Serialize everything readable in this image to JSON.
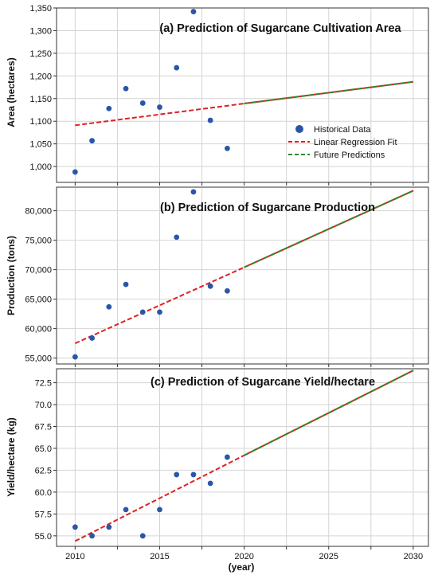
{
  "chart_data": [
    {
      "type": "scatter",
      "title": "(a) Prediction of Sugarcane Cultivation Area",
      "ylabel": "Area (hectares)",
      "xlim": [
        2008.9,
        2030.9
      ],
      "ylim": [
        965,
        1350
      ],
      "yticks": [
        1000,
        1050,
        1100,
        1150,
        1200,
        1250,
        1300,
        1350
      ],
      "ytick_labels": [
        "1,000",
        "1,050",
        "1,100",
        "1,150",
        "1,200",
        "1,250",
        "1,300",
        "1,350"
      ],
      "historical": {
        "x": [
          2010,
          2011,
          2012,
          2013,
          2014,
          2015,
          2016,
          2017,
          2018,
          2019
        ],
        "y": [
          988,
          1057,
          1128,
          1172,
          1140,
          1131,
          1218,
          1342,
          1102,
          1040
        ]
      },
      "fit": {
        "x": [
          2010,
          2020
        ],
        "y": [
          1091,
          1139
        ]
      },
      "prediction": {
        "x": [
          2020,
          2030
        ],
        "y": [
          1139,
          1187
        ]
      },
      "legend": {
        "position": "right",
        "entries": [
          "Historical Data",
          "Linear Regression Fit",
          "Future Predictions"
        ]
      }
    },
    {
      "type": "scatter",
      "title": "(b) Prediction of Sugarcane Production",
      "ylabel": "Production (tons)",
      "xlim": [
        2008.9,
        2030.9
      ],
      "ylim": [
        54000,
        84000
      ],
      "yticks": [
        55000,
        60000,
        65000,
        70000,
        75000,
        80000
      ],
      "ytick_labels": [
        "55,000",
        "60,000",
        "65,000",
        "70,000",
        "75,000",
        "80,000"
      ],
      "historical": {
        "x": [
          2010,
          2011,
          2012,
          2013,
          2014,
          2015,
          2016,
          2017,
          2018,
          2019
        ],
        "y": [
          55200,
          58400,
          63700,
          67500,
          62800,
          62800,
          75500,
          83200,
          67200,
          66400
        ]
      },
      "fit": {
        "x": [
          2010,
          2020
        ],
        "y": [
          57500,
          70400
        ]
      },
      "prediction": {
        "x": [
          2020,
          2030
        ],
        "y": [
          70400,
          83400
        ]
      }
    },
    {
      "type": "scatter",
      "title": "(c) Prediction of Sugarcane Yield/hectare",
      "ylabel": "Yield/hectare (kg)",
      "xlabel": "(year)",
      "xlim": [
        2008.9,
        2030.9
      ],
      "ylim": [
        53.8,
        74.1
      ],
      "yticks": [
        55.0,
        57.5,
        60.0,
        62.5,
        65.0,
        67.5,
        70.0,
        72.5
      ],
      "ytick_labels": [
        "55.0",
        "57.5",
        "60.0",
        "62.5",
        "65.0",
        "67.5",
        "70.0",
        "72.5"
      ],
      "xticks": [
        2010,
        2015,
        2020,
        2025,
        2030
      ],
      "xtick_labels": [
        "2010",
        "2015",
        "2020",
        "2025",
        "2030"
      ],
      "historical": {
        "x": [
          2010,
          2011,
          2012,
          2013,
          2014,
          2015,
          2016,
          2017,
          2018,
          2019
        ],
        "y": [
          56,
          55,
          56,
          58,
          55,
          58,
          62,
          62,
          61,
          64
        ]
      },
      "fit": {
        "x": [
          2010,
          2020
        ],
        "y": [
          54.4,
          64.2
        ]
      },
      "prediction": {
        "x": [
          2020,
          2030
        ],
        "y": [
          64.2,
          73.9
        ]
      }
    }
  ],
  "colors": {
    "points": "#2a56a8",
    "fit": "#e02020",
    "prediction": "#2f8a2f",
    "grid": "#d4d4d4",
    "frame": "#333333",
    "text": "#111111"
  }
}
